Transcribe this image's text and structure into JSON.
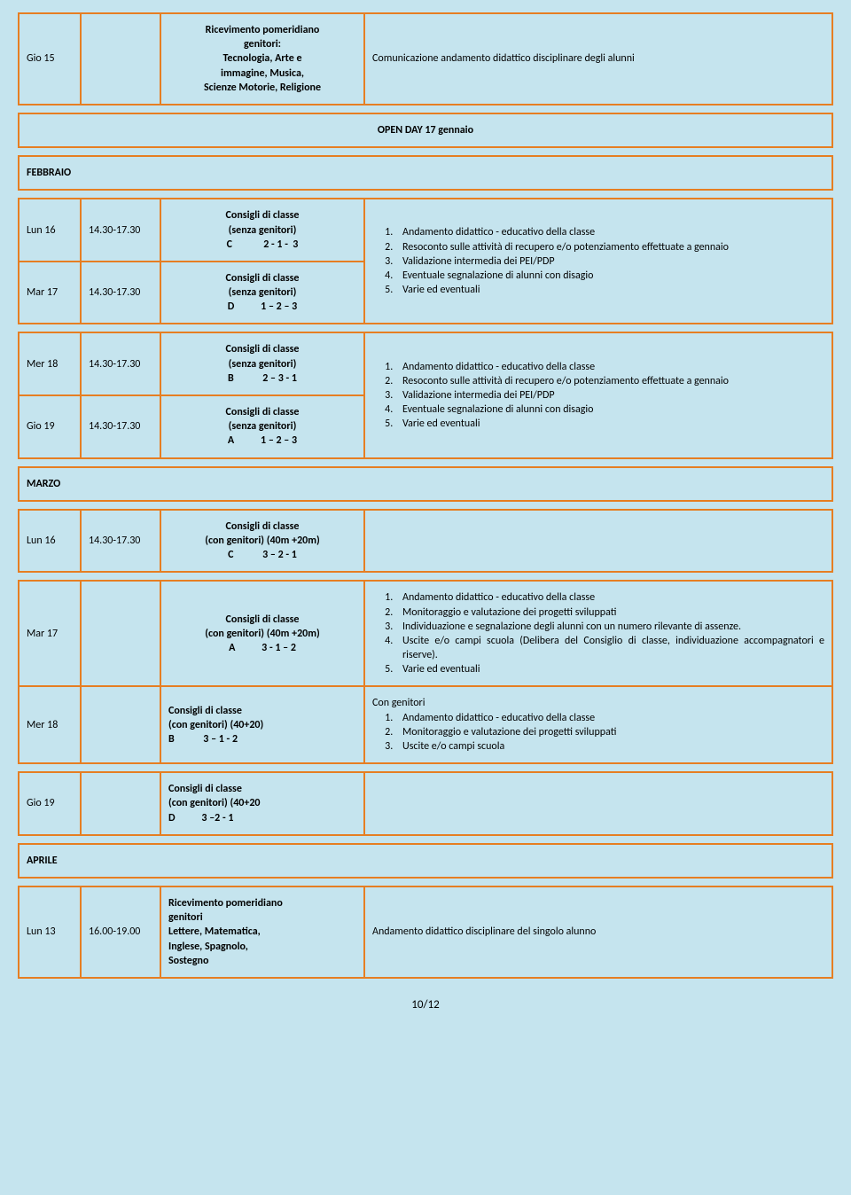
{
  "page": {
    "number": "10/12"
  },
  "border_color": "#e67e22",
  "background_color": "#c5e4ee",
  "text_color": "#000000",
  "row1": {
    "day": "Gio 15",
    "activity_l1": "Ricevimento pomeridiano",
    "activity_l2": "genitori:",
    "activity_l3": "Tecnologia, Arte e",
    "activity_l4": "immagine, Musica,",
    "activity_l5": "Scienze Motorie, Religione",
    "content": "Comunicazione andamento didattico disciplinare degli alunni"
  },
  "openday": "OPEN DAY 17 gennaio",
  "febbraio": "FEBBRAIO",
  "feb1": {
    "r1_day": "Lun 16",
    "r1_time": "14.30-17.30",
    "r1_act_l1": "Consigli di classe",
    "r1_act_l2": "(senza genitori)",
    "r1_act_l3": "C             2 - 1 -  3",
    "r2_day": "Mar 17",
    "r2_time": "14.30-17.30",
    "r2_act_l1": "Consigli di classe",
    "r2_act_l2": "(senza genitori)",
    "r2_act_l3": "D           1 – 2 – 3",
    "li1": "Andamento didattico - educativo della classe",
    "li2": "Resoconto sulle attività  di recupero e/o  potenziamento effettuate a gennaio",
    "li3": "Validazione intermedia dei PEI/PDP",
    "li4": "Eventuale segnalazione di alunni con disagio",
    "li5": "Varie ed eventuali"
  },
  "feb2": {
    "r1_day": "Mer 18",
    "r1_time": "14.30-17.30",
    "r1_act_l1": "Consigli di classe",
    "r1_act_l2": "(senza genitori)",
    "r1_act_l3": "B            2 – 3 - 1",
    "r2_day": "Gio 19",
    "r2_time": "14.30-17.30",
    "r2_act_l1": "Consigli di classe",
    "r2_act_l2": "(senza genitori)",
    "r2_act_l3": "A           1 – 2 – 3",
    "li1": "Andamento didattico - educativo della classe",
    "li2": "Resoconto sulle attività  di recupero e/o  potenziamento effettuate a gennaio",
    "li3": "Validazione intermedia dei PEI/PDP",
    "li4": "Eventuale segnalazione di alunni con disagio",
    "li5": "Varie ed eventuali"
  },
  "marzo": "MARZO",
  "mar1": {
    "day": "Lun 16",
    "time": "14.30-17.30",
    "act_l1": "Consigli di classe",
    "act_l2": "(con genitori) (40m +20m)",
    "act_l3": "C            3 – 2 - 1"
  },
  "mar2": {
    "r1_day": "Mar 17",
    "r1_act_l1": "Consigli di classe",
    "r1_act_l2": "(con genitori) (40m +20m)",
    "r1_act_l3": "A           3 - 1 – 2",
    "r2_day": "Mer 18",
    "r2_act_l1": "Consigli di classe",
    "r2_act_l2": "(con genitori) (40+20)",
    "r2_act_l3": "B            3 – 1 - 2",
    "b1_li1": "Andamento didattico - educativo della classe",
    "b1_li2": "Monitoraggio e valutazione dei progetti sviluppati",
    "b1_li3": "Individuazione e segnalazione degli alunni con un numero rilevante di assenze.",
    "b1_li4": "Uscite e/o campi scuola (Delibera del Consiglio di classe, individuazione accompagnatori e riserve).",
    "b1_li5": "Varie ed eventuali",
    "b2_head": "Con genitori",
    "b2_li1": "Andamento didattico - educativo della classe",
    "b2_li2": " Monitoraggio e valutazione dei progetti sviluppati",
    "b2_li3": "Uscite e/o campi scuola"
  },
  "mar3": {
    "day": "Gio 19",
    "act_l1": "Consigli di classe",
    "act_l2": "(con genitori) (40+20",
    "act_l3": "D           3 –2 - 1"
  },
  "aprile": "APRILE",
  "apr1": {
    "day": "Lun 13",
    "time": "16.00-19.00",
    "act_l1": "Ricevimento pomeridiano",
    "act_l2": "genitori",
    "act_l3": "Lettere, Matematica,",
    "act_l4": "Inglese, Spagnolo,",
    "act_l5": "Sostegno",
    "content": "Andamento didattico disciplinare del singolo alunno"
  }
}
